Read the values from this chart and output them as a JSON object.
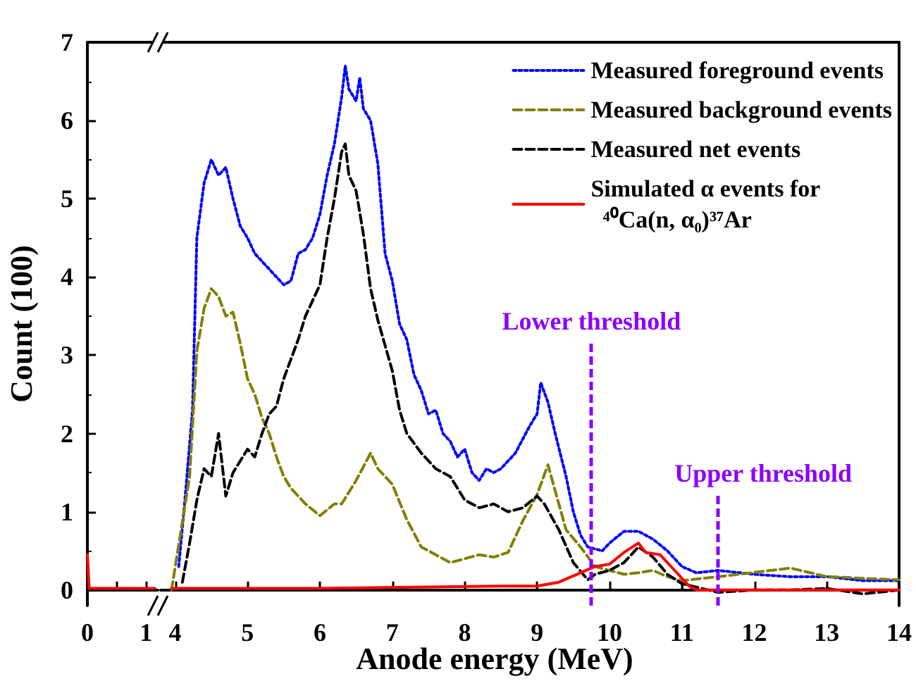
{
  "chart_data": [
    {
      "type": "line",
      "ylabel": "Count (100)",
      "xlim": [
        0,
        1.2
      ],
      "xticks": [
        0,
        {
          "value": 0.5,
          "label": null
        },
        1
      ],
      "ylim": [
        -0.2,
        7
      ],
      "yticks": [
        0,
        1,
        2,
        3,
        4,
        5,
        6,
        7
      ],
      "grid": false,
      "legend": false,
      "marker": "none",
      "series": [
        {
          "color": "#ff0000",
          "line_style": "solid",
          "x": [
            0,
            0.03,
            0.6,
            1.15
          ],
          "values": [
            0.45,
            0.02,
            0.02,
            0.02
          ]
        }
      ]
    },
    {
      "type": "line",
      "xlabel": "Anode energy (MeV)",
      "xlim": [
        3.8,
        14
      ],
      "xticks": [
        4,
        5,
        6,
        7,
        8,
        9,
        10,
        11,
        12,
        13,
        14
      ],
      "ylim": [
        -0.2,
        7
      ],
      "yticks": [
        0,
        1,
        2,
        3,
        4,
        5,
        6,
        7
      ],
      "tick_labels": "x",
      "grid": false,
      "legend": "top right",
      "marker": "none",
      "series": [
        {
          "name": "Measured foreground events",
          "color": "#0000ff",
          "line_style": "dotted",
          "x": [
            4.05,
            4.14,
            4.24,
            4.3,
            4.4,
            4.5,
            4.6,
            4.7,
            4.8,
            4.9,
            5.0,
            5.1,
            5.2,
            5.4,
            5.5,
            5.6,
            5.7,
            5.8,
            5.9,
            6.0,
            6.1,
            6.2,
            6.3,
            6.35,
            6.4,
            6.5,
            6.55,
            6.6,
            6.7,
            6.8,
            6.9,
            7.0,
            7.1,
            7.2,
            7.3,
            7.4,
            7.5,
            7.6,
            7.7,
            7.8,
            7.9,
            8.0,
            8.1,
            8.2,
            8.3,
            8.4,
            8.5,
            8.7,
            8.9,
            9.0,
            9.05,
            9.15,
            9.25,
            9.4,
            9.5,
            9.6,
            9.7,
            9.9,
            10.0,
            10.2,
            10.4,
            10.6,
            10.8,
            11.0,
            11.2,
            11.5,
            12.0,
            12.5,
            13.0,
            13.5,
            14.0
          ],
          "values": [
            0.3,
            1.2,
            2.3,
            4.5,
            5.2,
            5.5,
            5.3,
            5.4,
            5.0,
            4.65,
            4.5,
            4.3,
            4.2,
            4.0,
            3.9,
            3.95,
            4.3,
            4.35,
            4.5,
            4.8,
            5.3,
            5.7,
            6.3,
            6.7,
            6.4,
            6.25,
            6.55,
            6.15,
            6.0,
            5.45,
            4.3,
            3.95,
            3.4,
            3.2,
            2.75,
            2.55,
            2.25,
            2.3,
            2.0,
            1.9,
            1.7,
            1.8,
            1.5,
            1.4,
            1.55,
            1.5,
            1.55,
            1.75,
            2.1,
            2.25,
            2.65,
            2.4,
            2.0,
            1.45,
            1.0,
            0.7,
            0.55,
            0.5,
            0.6,
            0.75,
            0.75,
            0.65,
            0.5,
            0.3,
            0.22,
            0.25,
            0.2,
            0.17,
            0.17,
            0.12,
            0.12
          ]
        },
        {
          "name": "Measured background events",
          "color": "#808000",
          "line_style": "dashed",
          "x": [
            3.95,
            4.2,
            4.3,
            4.4,
            4.5,
            4.6,
            4.7,
            4.8,
            4.9,
            5.0,
            5.1,
            5.2,
            5.3,
            5.4,
            5.5,
            5.6,
            5.8,
            6.0,
            6.2,
            6.3,
            6.5,
            6.7,
            6.8,
            7.0,
            7.2,
            7.4,
            7.6,
            7.8,
            8.0,
            8.2,
            8.4,
            8.6,
            8.8,
            9.0,
            9.15,
            9.3,
            9.4,
            9.6,
            9.8,
            10.0,
            10.2,
            10.4,
            10.6,
            10.8,
            11.0,
            11.5,
            12.5,
            13.0,
            14.0
          ],
          "values": [
            0,
            1.45,
            3.05,
            3.6,
            3.85,
            3.75,
            3.5,
            3.55,
            3.15,
            2.7,
            2.5,
            2.2,
            2.0,
            1.7,
            1.45,
            1.3,
            1.1,
            0.95,
            1.1,
            1.1,
            1.4,
            1.75,
            1.55,
            1.35,
            0.9,
            0.55,
            0.45,
            0.35,
            0.4,
            0.45,
            0.42,
            0.48,
            0.88,
            1.22,
            1.6,
            1.1,
            0.77,
            0.55,
            0.3,
            0.25,
            0.2,
            0.22,
            0.25,
            0.17,
            0.12,
            0.17,
            0.28,
            0.17,
            0.13
          ]
        },
        {
          "name": "Measured net events",
          "color": "#000000",
          "line_style": "dashed",
          "x": [
            4.1,
            4.2,
            4.3,
            4.4,
            4.5,
            4.6,
            4.7,
            4.8,
            5.0,
            5.1,
            5.2,
            5.3,
            5.4,
            5.5,
            5.7,
            5.8,
            6.0,
            6.1,
            6.2,
            6.3,
            6.35,
            6.4,
            6.5,
            6.6,
            6.7,
            6.8,
            7.0,
            7.1,
            7.2,
            7.4,
            7.6,
            7.8,
            8.0,
            8.2,
            8.4,
            8.6,
            8.8,
            9.0,
            9.1,
            9.3,
            9.5,
            9.7,
            9.8,
            10.0,
            10.2,
            10.4,
            10.6,
            10.8,
            11.0,
            11.5,
            12.0,
            12.5,
            13.0,
            13.5,
            14.0
          ],
          "values": [
            0.1,
            0.6,
            1.15,
            1.55,
            1.45,
            2.0,
            1.2,
            1.5,
            1.8,
            1.7,
            2.0,
            2.25,
            2.35,
            2.7,
            3.2,
            3.5,
            3.9,
            4.5,
            5.0,
            5.6,
            5.7,
            5.3,
            5.1,
            4.55,
            3.85,
            3.45,
            2.8,
            2.3,
            2.0,
            1.75,
            1.55,
            1.45,
            1.15,
            1.05,
            1.1,
            1.0,
            1.05,
            1.2,
            1.1,
            0.77,
            0.35,
            0.13,
            0.2,
            0.25,
            0.35,
            0.55,
            0.42,
            0.2,
            0.08,
            -0.03,
            0,
            0,
            0.02,
            -0.05,
            0
          ]
        },
        {
          "name": "Simulated α events for ⁴⁰Ca(n, α₀)³⁷Ar",
          "color": "#ff0000",
          "line_style": "solid",
          "x": [
            3.95,
            6.0,
            8.5,
            9.0,
            9.3,
            9.6,
            9.8,
            10.0,
            10.2,
            10.4,
            10.5,
            10.7,
            10.9,
            11.1,
            11.2,
            14.0
          ],
          "values": [
            0.02,
            0.02,
            0.05,
            0.05,
            0.1,
            0.22,
            0.3,
            0.33,
            0.48,
            0.6,
            0.48,
            0.45,
            0.25,
            0.05,
            0,
            0
          ]
        }
      ],
      "ref_lines": [
        {
          "axis": "x",
          "value": 9.75,
          "label": "Lower threshold",
          "color": "#8b00ff",
          "line_style": "dashed"
        },
        {
          "axis": "x",
          "value": 11.5,
          "label": "Upper threshold",
          "color": "#8b00ff",
          "line_style": "dashed"
        }
      ]
    }
  ]
}
